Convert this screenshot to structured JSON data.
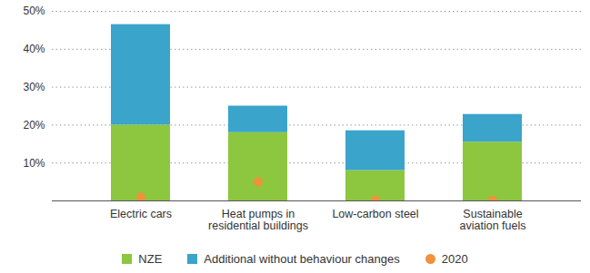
{
  "chart_data": {
    "type": "bar",
    "stacked": true,
    "grid": true,
    "legend": "bottom",
    "categories": [
      "Electric cars",
      "Heat pumps in residential buildings",
      "Low-carbon steel",
      "Sustainable aviation fuels"
    ],
    "series": [
      {
        "name": "NZE",
        "type": "bar",
        "color": "#8dc63f",
        "values": [
          20,
          18,
          8,
          15.5
        ]
      },
      {
        "name": "Additional without behaviour changes",
        "type": "bar",
        "color": "#3aa4cb",
        "values": [
          26.5,
          7,
          10.5,
          7.3
        ]
      },
      {
        "name": "2020",
        "type": "scatter",
        "marker": "circle",
        "color": "#f0923b",
        "values": [
          1,
          5,
          0.2,
          0.1
        ]
      }
    ],
    "ylim": [
      0,
      50
    ],
    "yticks": [
      {
        "value": 10,
        "label": "10%"
      },
      {
        "value": 20,
        "label": "20%"
      },
      {
        "value": 30,
        "label": "30%"
      },
      {
        "value": 40,
        "label": "40%"
      },
      {
        "value": 50,
        "label": "50%"
      }
    ]
  }
}
